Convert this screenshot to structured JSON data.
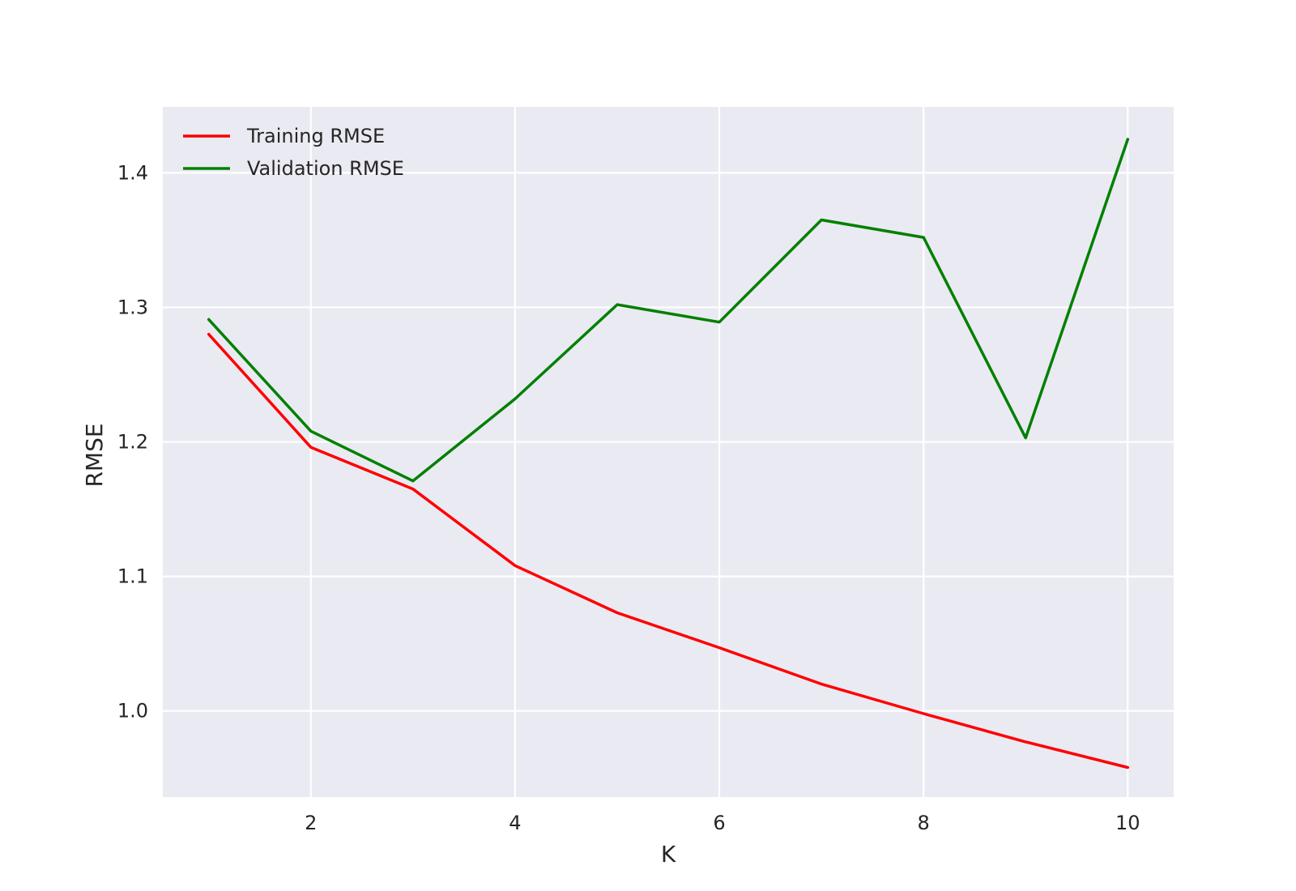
{
  "chart_data": {
    "type": "line",
    "title": "",
    "xlabel": "K",
    "ylabel": "RMSE",
    "x": [
      1,
      2,
      3,
      4,
      5,
      6,
      7,
      8,
      9,
      10
    ],
    "series": [
      {
        "name": "Training RMSE",
        "color": "#ff0000",
        "values": [
          1.28,
          1.196,
          1.165,
          1.108,
          1.073,
          1.047,
          1.02,
          0.998,
          0.977,
          0.958
        ]
      },
      {
        "name": "Validation RMSE",
        "color": "#008000",
        "values": [
          1.291,
          1.208,
          1.171,
          1.232,
          1.302,
          1.289,
          1.365,
          1.352,
          1.203,
          1.425
        ]
      }
    ],
    "xlim": [
      0.55,
      10.45
    ],
    "ylim": [
      0.936,
      1.449
    ],
    "xticks": [
      2,
      4,
      6,
      8,
      10
    ],
    "yticks": [
      1.0,
      1.1,
      1.2,
      1.3,
      1.4
    ],
    "xtick_labels": [
      "2",
      "4",
      "6",
      "8",
      "10"
    ],
    "ytick_labels": [
      "1.0",
      "1.1",
      "1.2",
      "1.3",
      "1.4"
    ],
    "grid": true,
    "legend_position": "top-left",
    "background": "#eaeaf2",
    "grid_color": "#ffffff"
  }
}
